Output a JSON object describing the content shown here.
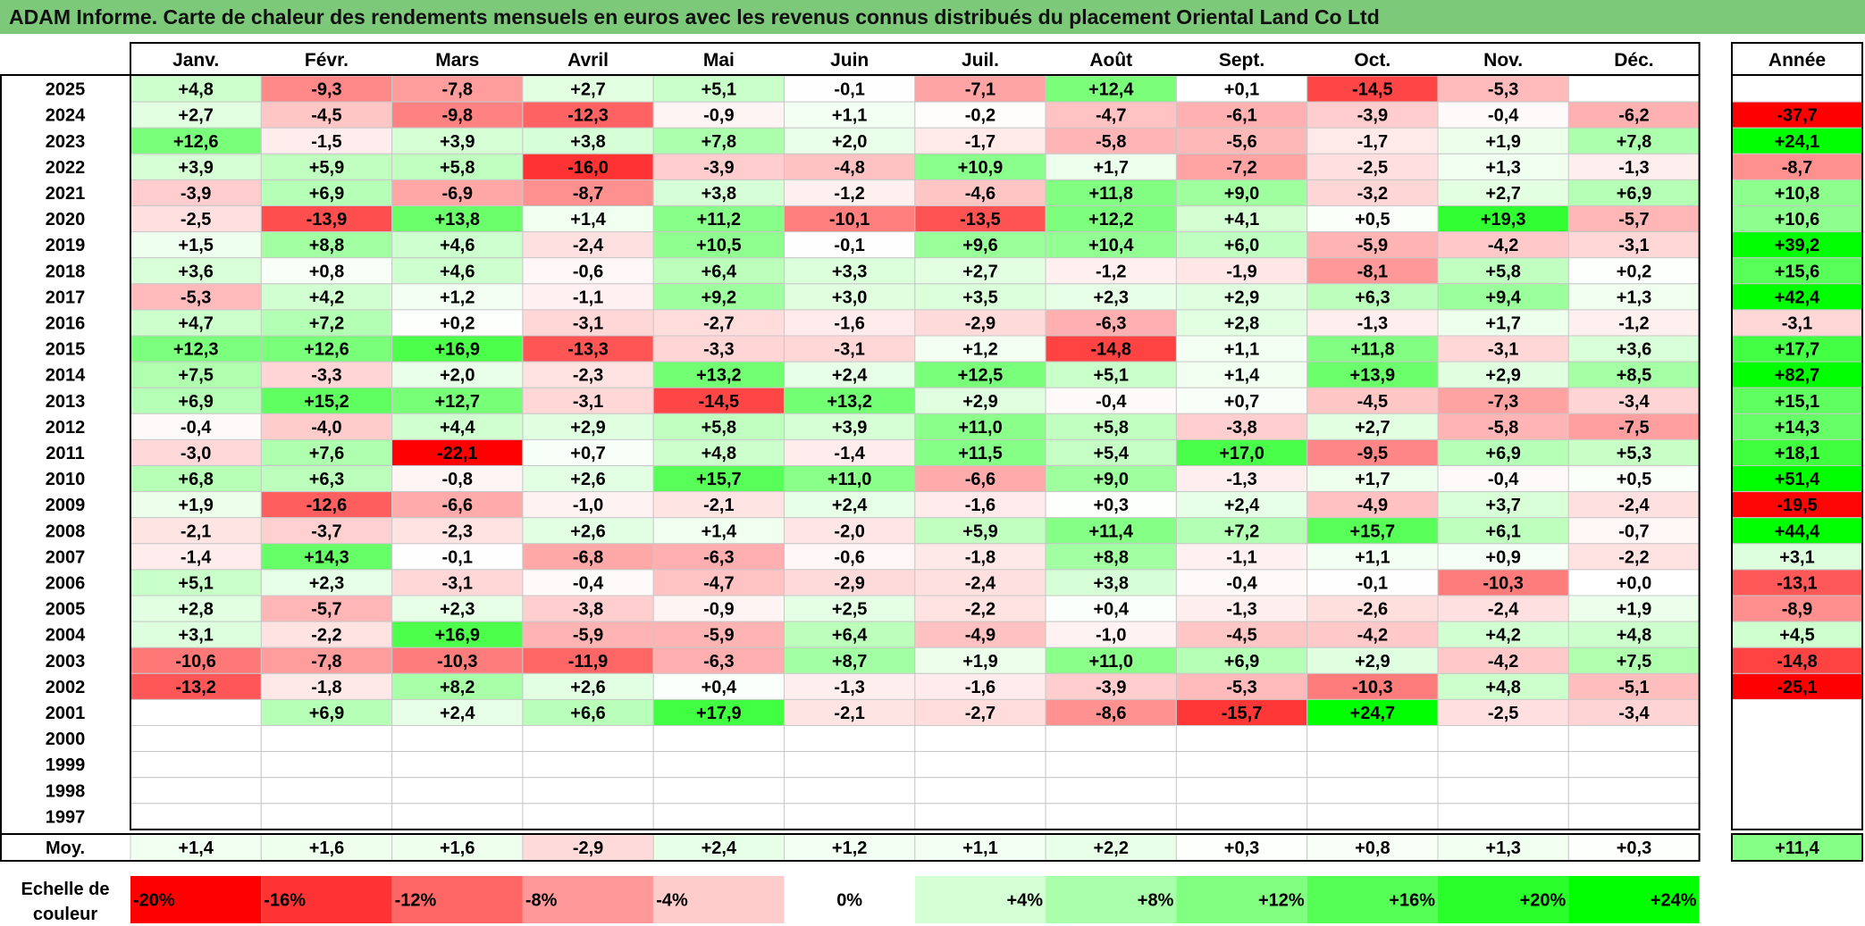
{
  "title": "ADAM Informe. Carte de chaleur des rendements mensuels en euros avec les revenus connus distribués du placement Oriental Land Co Ltd",
  "chart_data": {
    "type": "heatmap",
    "title": "ADAM Informe. Carte de chaleur des rendements mensuels en euros avec les revenus connus distribués du placement Oriental Land Co Ltd",
    "months": [
      "Janv.",
      "Févr.",
      "Mars",
      "Avril",
      "Mai",
      "Juin",
      "Juil.",
      "Août",
      "Sept.",
      "Oct.",
      "Nov.",
      "Déc."
    ],
    "year_header": "Année",
    "rows": [
      {
        "year": "2025",
        "values": [
          "+4,8",
          "-9,3",
          "-7,8",
          "+2,7",
          "+5,1",
          "-0,1",
          "-7,1",
          "+12,4",
          "+0,1",
          "-14,5",
          "-5,3",
          ""
        ],
        "annual": ""
      },
      {
        "year": "2024",
        "values": [
          "+2,7",
          "-4,5",
          "-9,8",
          "-12,3",
          "-0,9",
          "+1,1",
          "-0,2",
          "-4,7",
          "-6,1",
          "-3,9",
          "-0,4",
          "-6,2"
        ],
        "annual": "-37,7"
      },
      {
        "year": "2023",
        "values": [
          "+12,6",
          "-1,5",
          "+3,9",
          "+3,8",
          "+7,8",
          "+2,0",
          "-1,7",
          "-5,8",
          "-5,6",
          "-1,7",
          "+1,9",
          "+7,8"
        ],
        "annual": "+24,1"
      },
      {
        "year": "2022",
        "values": [
          "+3,9",
          "+5,9",
          "+5,8",
          "-16,0",
          "-3,9",
          "-4,8",
          "+10,9",
          "+1,7",
          "-7,2",
          "-2,5",
          "+1,3",
          "-1,3"
        ],
        "annual": "-8,7"
      },
      {
        "year": "2021",
        "values": [
          "-3,9",
          "+6,9",
          "-6,9",
          "-8,7",
          "+3,8",
          "-1,2",
          "-4,6",
          "+11,8",
          "+9,0",
          "-3,2",
          "+2,7",
          "+6,9"
        ],
        "annual": "+10,8"
      },
      {
        "year": "2020",
        "values": [
          "-2,5",
          "-13,9",
          "+13,8",
          "+1,4",
          "+11,2",
          "-10,1",
          "-13,5",
          "+12,2",
          "+4,1",
          "+0,5",
          "+19,3",
          "-5,7"
        ],
        "annual": "+10,6"
      },
      {
        "year": "2019",
        "values": [
          "+1,5",
          "+8,8",
          "+4,6",
          "-2,4",
          "+10,5",
          "-0,1",
          "+9,6",
          "+10,4",
          "+6,0",
          "-5,9",
          "-4,2",
          "-3,1"
        ],
        "annual": "+39,2"
      },
      {
        "year": "2018",
        "values": [
          "+3,6",
          "+0,8",
          "+4,6",
          "-0,6",
          "+6,4",
          "+3,3",
          "+2,7",
          "-1,2",
          "-1,9",
          "-8,1",
          "+5,8",
          "+0,2"
        ],
        "annual": "+15,6"
      },
      {
        "year": "2017",
        "values": [
          "-5,3",
          "+4,2",
          "+1,2",
          "-1,1",
          "+9,2",
          "+3,0",
          "+3,5",
          "+2,3",
          "+2,9",
          "+6,3",
          "+9,4",
          "+1,3"
        ],
        "annual": "+42,4"
      },
      {
        "year": "2016",
        "values": [
          "+4,7",
          "+7,2",
          "+0,2",
          "-3,1",
          "-2,7",
          "-1,6",
          "-2,9",
          "-6,3",
          "+2,8",
          "-1,3",
          "+1,7",
          "-1,2"
        ],
        "annual": "-3,1"
      },
      {
        "year": "2015",
        "values": [
          "+12,3",
          "+12,6",
          "+16,9",
          "-13,3",
          "-3,3",
          "-3,1",
          "+1,2",
          "-14,8",
          "+1,1",
          "+11,8",
          "-3,1",
          "+3,6"
        ],
        "annual": "+17,7"
      },
      {
        "year": "2014",
        "values": [
          "+7,5",
          "-3,3",
          "+2,0",
          "-2,3",
          "+13,2",
          "+2,4",
          "+12,5",
          "+5,1",
          "+1,4",
          "+13,9",
          "+2,9",
          "+8,5"
        ],
        "annual": "+82,7"
      },
      {
        "year": "2013",
        "values": [
          "+6,9",
          "+15,2",
          "+12,7",
          "-3,1",
          "-14,5",
          "+13,2",
          "+2,9",
          "-0,4",
          "+0,7",
          "-4,5",
          "-7,3",
          "-3,4"
        ],
        "annual": "+15,1"
      },
      {
        "year": "2012",
        "values": [
          "-0,4",
          "-4,0",
          "+4,4",
          "+2,9",
          "+5,8",
          "+3,9",
          "+11,0",
          "+5,8",
          "-3,8",
          "+2,7",
          "-5,8",
          "-7,5"
        ],
        "annual": "+14,3"
      },
      {
        "year": "2011",
        "values": [
          "-3,0",
          "+7,6",
          "-22,1",
          "+0,7",
          "+4,8",
          "-1,4",
          "+11,5",
          "+5,4",
          "+17,0",
          "-9,5",
          "+6,9",
          "+5,3"
        ],
        "annual": "+18,1"
      },
      {
        "year": "2010",
        "values": [
          "+6,8",
          "+6,3",
          "-0,8",
          "+2,6",
          "+15,7",
          "+11,0",
          "-6,6",
          "+9,0",
          "-1,3",
          "+1,7",
          "-0,4",
          "+0,5"
        ],
        "annual": "+51,4"
      },
      {
        "year": "2009",
        "values": [
          "+1,9",
          "-12,6",
          "-6,6",
          "-1,0",
          "-2,1",
          "+2,4",
          "-1,6",
          "+0,3",
          "+2,4",
          "-4,9",
          "+3,7",
          "-2,4"
        ],
        "annual": "-19,5"
      },
      {
        "year": "2008",
        "values": [
          "-2,1",
          "-3,7",
          "-2,3",
          "+2,6",
          "+1,4",
          "-2,0",
          "+5,9",
          "+11,4",
          "+7,2",
          "+15,7",
          "+6,1",
          "-0,7"
        ],
        "annual": "+44,4"
      },
      {
        "year": "2007",
        "values": [
          "-1,4",
          "+14,3",
          "-0,1",
          "-6,8",
          "-6,3",
          "-0,6",
          "-1,8",
          "+8,8",
          "-1,1",
          "+1,1",
          "+0,9",
          "-2,2"
        ],
        "annual": "+3,1"
      },
      {
        "year": "2006",
        "values": [
          "+5,1",
          "+2,3",
          "-3,1",
          "-0,4",
          "-4,7",
          "-2,9",
          "-2,4",
          "+3,8",
          "-0,4",
          "-0,1",
          "-10,3",
          "+0,0"
        ],
        "annual": "-13,1"
      },
      {
        "year": "2005",
        "values": [
          "+2,8",
          "-5,7",
          "+2,3",
          "-3,8",
          "-0,9",
          "+2,5",
          "-2,2",
          "+0,4",
          "-1,3",
          "-2,6",
          "-2,4",
          "+1,9"
        ],
        "annual": "-8,9"
      },
      {
        "year": "2004",
        "values": [
          "+3,1",
          "-2,2",
          "+16,9",
          "-5,9",
          "-5,9",
          "+6,4",
          "-4,9",
          "-1,0",
          "-4,5",
          "-4,2",
          "+4,2",
          "+4,8"
        ],
        "annual": "+4,5"
      },
      {
        "year": "2003",
        "values": [
          "-10,6",
          "-7,8",
          "-10,3",
          "-11,9",
          "-6,3",
          "+8,7",
          "+1,9",
          "+11,0",
          "+6,9",
          "+2,9",
          "-4,2",
          "+7,5"
        ],
        "annual": "-14,8"
      },
      {
        "year": "2002",
        "values": [
          "-13,2",
          "-1,8",
          "+8,2",
          "+2,6",
          "+0,4",
          "-1,3",
          "-1,6",
          "-3,9",
          "-5,3",
          "-10,3",
          "+4,8",
          "-5,1"
        ],
        "annual": "-25,1"
      },
      {
        "year": "2001",
        "values": [
          "",
          "+6,9",
          "+2,4",
          "+6,6",
          "+17,9",
          "-2,1",
          "-2,7",
          "-8,6",
          "-15,7",
          "+24,7",
          "-2,5",
          "-3,4"
        ],
        "annual": ""
      },
      {
        "year": "2000",
        "values": [
          "",
          "",
          "",
          "",
          "",
          "",
          "",
          "",
          "",
          "",
          "",
          ""
        ],
        "annual": ""
      },
      {
        "year": "1999",
        "values": [
          "",
          "",
          "",
          "",
          "",
          "",
          "",
          "",
          "",
          "",
          "",
          ""
        ],
        "annual": ""
      },
      {
        "year": "1998",
        "values": [
          "",
          "",
          "",
          "",
          "",
          "",
          "",
          "",
          "",
          "",
          "",
          ""
        ],
        "annual": ""
      },
      {
        "year": "1997",
        "values": [
          "",
          "",
          "",
          "",
          "",
          "",
          "",
          "",
          "",
          "",
          "",
          ""
        ],
        "annual": ""
      }
    ],
    "average": {
      "label": "Moy.",
      "values": [
        "+1,4",
        "+1,6",
        "+1,6",
        "-2,9",
        "+2,4",
        "+1,2",
        "+1,1",
        "+2,2",
        "+0,3",
        "+0,8",
        "+1,3",
        "+0,3"
      ],
      "annual": "+11,4"
    },
    "scale": {
      "label_line1": "Echelle de",
      "label_line2": "couleur",
      "steps": [
        "-20%",
        "-16%",
        "-12%",
        "-8%",
        "-4%",
        "0%",
        "+4%",
        "+8%",
        "+12%",
        "+16%",
        "+20%",
        "+24%"
      ]
    },
    "color_range": {
      "min": -20,
      "max": 24,
      "negative_color": "#ff0000",
      "zero_color": "#ffffff",
      "positive_color": "#00ff00"
    }
  }
}
